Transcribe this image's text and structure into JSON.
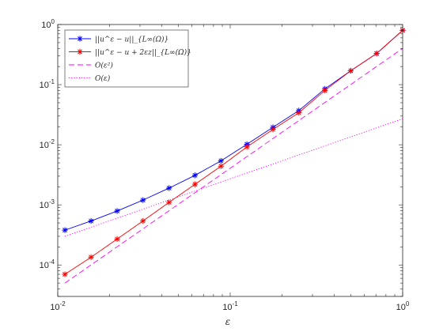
{
  "chart_data": {
    "type": "line",
    "xscale": "log",
    "yscale": "log",
    "xlim": [
      0.01,
      1
    ],
    "ylim": [
      3e-05,
      1
    ],
    "xlabel": "ε",
    "grid": false,
    "legend_position": "top-left",
    "xticks": [
      {
        "value": 0.01,
        "base": "10",
        "exp": "-2"
      },
      {
        "value": 0.1,
        "base": "10",
        "exp": "-1"
      },
      {
        "value": 1,
        "base": "10",
        "exp": "0"
      }
    ],
    "yticks": [
      {
        "value": 0.0001,
        "base": "10",
        "exp": "-4"
      },
      {
        "value": 0.001,
        "base": "10",
        "exp": "-3"
      },
      {
        "value": 0.01,
        "base": "10",
        "exp": "-2"
      },
      {
        "value": 0.1,
        "base": "10",
        "exp": "-1"
      },
      {
        "value": 1,
        "base": "10",
        "exp": "0"
      }
    ],
    "series": [
      {
        "name": "||u^ε − u||_{L∞(Ω)}",
        "color": "#0000ff",
        "style": "solid",
        "marker": "asterisk",
        "x": [
          0.011,
          0.0156,
          0.0221,
          0.0312,
          0.0442,
          0.0625,
          0.0884,
          0.125,
          0.177,
          0.25,
          0.354,
          0.5,
          0.707,
          1.0
        ],
        "y": [
          0.00038,
          0.00054,
          0.00079,
          0.0012,
          0.0019,
          0.0031,
          0.0054,
          0.0102,
          0.0195,
          0.037,
          0.085,
          0.17,
          0.33,
          0.8
        ]
      },
      {
        "name": "||u^ε − u + 2εz||_{L∞(Ω)}",
        "color": "#ff0000",
        "style": "solid",
        "marker": "asterisk",
        "x": [
          0.011,
          0.0156,
          0.0221,
          0.0312,
          0.0442,
          0.0625,
          0.0884,
          0.125,
          0.177,
          0.25,
          0.354,
          0.5,
          0.707,
          1.0
        ],
        "y": [
          7e-05,
          0.000135,
          0.00027,
          0.00054,
          0.0011,
          0.0022,
          0.0044,
          0.0092,
          0.018,
          0.034,
          0.08,
          0.17,
          0.33,
          0.8
        ]
      },
      {
        "name": "O(ε²)",
        "color": "#ff00ff",
        "style": "dashed",
        "marker": "none",
        "x": [
          0.011,
          1.0
        ],
        "y": [
          5e-05,
          0.4
        ]
      },
      {
        "name": "O(ε)",
        "color": "#ff00ff",
        "style": "dotted",
        "marker": "none",
        "x": [
          0.011,
          1.0
        ],
        "y": [
          0.0003,
          0.027
        ]
      }
    ]
  }
}
